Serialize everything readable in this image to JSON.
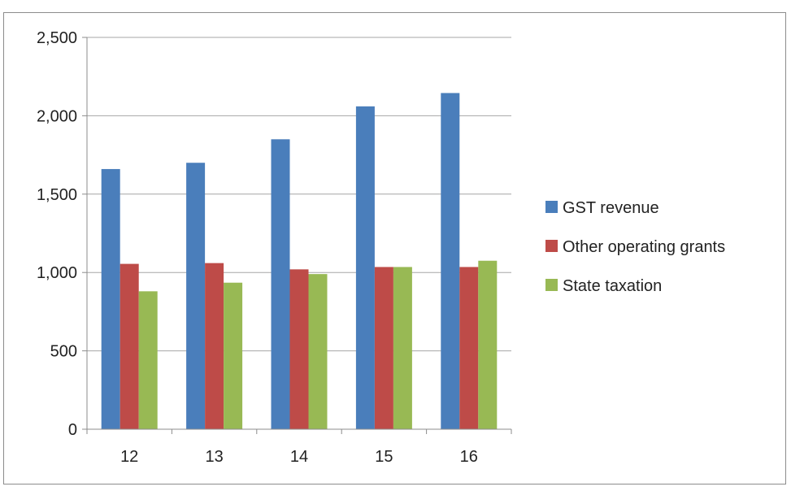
{
  "chart_data": {
    "type": "bar",
    "title": "",
    "xlabel": "",
    "ylabel": "",
    "categories": [
      "12",
      "13",
      "14",
      "15",
      "16"
    ],
    "series": [
      {
        "name": "GST revenue",
        "color": "#4a7ebb",
        "values": [
          1660,
          1700,
          1850,
          2060,
          2145
        ]
      },
      {
        "name": "Other operating grants",
        "color": "#be4b48",
        "values": [
          1055,
          1060,
          1020,
          1035,
          1035
        ]
      },
      {
        "name": "State taxation",
        "color": "#98b954",
        "values": [
          880,
          935,
          990,
          1035,
          1075
        ]
      }
    ],
    "ylim": [
      0,
      2500
    ],
    "yticks": [
      0,
      500,
      1000,
      1500,
      2000,
      2500
    ],
    "ytick_labels": [
      "0",
      "500",
      "1,000",
      "1,500",
      "2,000",
      "2,500"
    ],
    "grid": true,
    "legend_position": "right"
  }
}
